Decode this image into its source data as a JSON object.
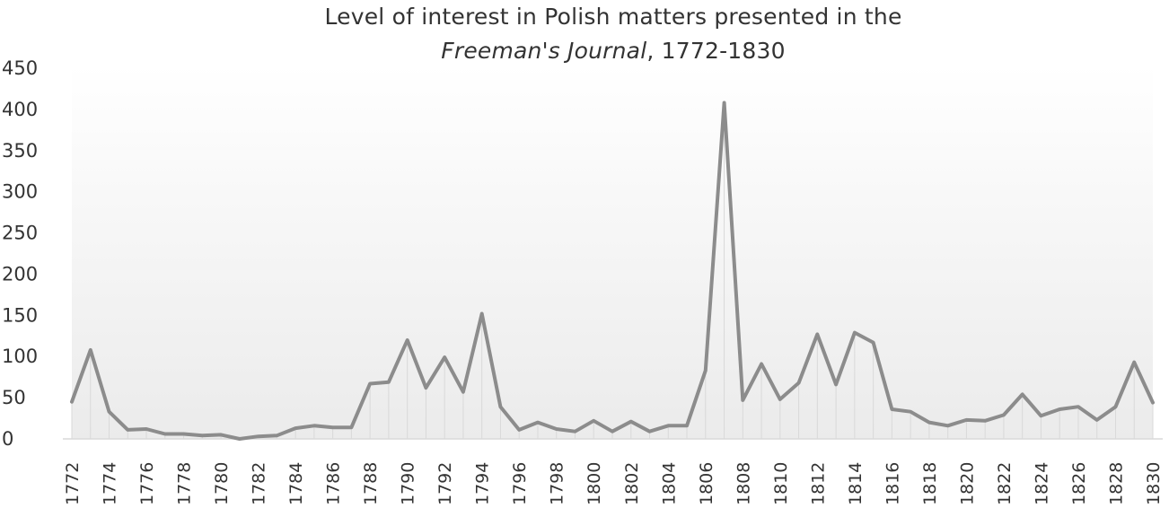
{
  "chart_data": {
    "type": "line",
    "title": {
      "line1": "Level of interest in Polish matters presented in the",
      "line2_italic": "Freeman's Journal",
      "line2_rest": ", 1772-1830"
    },
    "xlabel": "",
    "ylabel": "",
    "ylim": [
      0,
      450
    ],
    "yticks": [
      0,
      50,
      100,
      150,
      200,
      250,
      300,
      350,
      400,
      450
    ],
    "x": [
      1772,
      1773,
      1774,
      1775,
      1776,
      1777,
      1778,
      1779,
      1780,
      1781,
      1782,
      1783,
      1784,
      1785,
      1786,
      1787,
      1788,
      1789,
      1790,
      1791,
      1792,
      1793,
      1794,
      1795,
      1796,
      1797,
      1798,
      1799,
      1800,
      1801,
      1802,
      1803,
      1804,
      1805,
      1806,
      1807,
      1808,
      1809,
      1810,
      1811,
      1812,
      1813,
      1814,
      1815,
      1816,
      1817,
      1818,
      1819,
      1820,
      1821,
      1822,
      1823,
      1824,
      1825,
      1826,
      1827,
      1828,
      1829,
      1830
    ],
    "xtick_labels": [
      "1772",
      "1774",
      "1776",
      "1778",
      "1780",
      "1782",
      "1784",
      "1786",
      "1788",
      "1790",
      "1792",
      "1794",
      "1796",
      "1798",
      "1800",
      "1802",
      "1804",
      "1806",
      "1808",
      "1810",
      "1812",
      "1814",
      "1816",
      "1818",
      "1820",
      "1822",
      "1824",
      "1826",
      "1828",
      "1830"
    ],
    "series": [
      {
        "values": [
          45,
          108,
          33,
          11,
          12,
          6,
          6,
          4,
          5,
          0,
          3,
          4,
          13,
          16,
          14,
          14,
          67,
          69,
          120,
          62,
          99,
          57,
          152,
          39,
          11,
          20,
          12,
          9,
          22,
          9,
          21,
          9,
          16,
          16,
          83,
          408,
          47,
          91,
          48,
          68,
          127,
          66,
          129,
          117,
          36,
          33,
          20,
          16,
          23,
          22,
          29,
          54,
          28,
          36,
          39,
          23,
          39,
          93,
          44
        ]
      }
    ],
    "grid": false,
    "drop_lines": true,
    "colors": {
      "line": "#8c8c8c",
      "drop_line": "#d9d9d9",
      "axis": "#d9d9d9",
      "text": "#333333",
      "plot_fill_top": "#ffffff",
      "plot_fill_bottom": "#ebebeb"
    }
  }
}
